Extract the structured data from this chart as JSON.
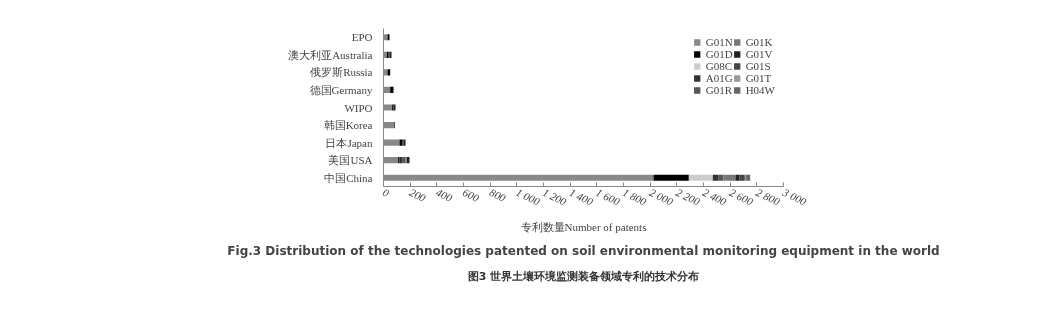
{
  "chart_data": {
    "type": "bar",
    "orientation": "horizontal",
    "stacked": true,
    "title": "图3 世界土壤环境监测装备领域专利的技术分布",
    "subtitle": "Fig.3 Distribution of the technologies patented on soil environmental monitoring equipment in the world",
    "xlabel": "专利数量Number of patents",
    "categories": [
      "EPO",
      "澳大利亚Australia",
      "俄罗斯Russia",
      "德国Germany",
      "WIPO",
      "韩国Korea",
      "日本Japan",
      "美国USA",
      "中国China"
    ],
    "series": [
      {
        "name": "G01N",
        "color": "#888888",
        "values": [
          30,
          25,
          30,
          50,
          65,
          80,
          120,
          110,
          2025
        ]
      },
      {
        "name": "G01D",
        "color": "#000000",
        "values": [
          15,
          10,
          20,
          25,
          10,
          5,
          20,
          10,
          265
        ]
      },
      {
        "name": "G08C",
        "color": "#cccccc",
        "values": [
          0,
          0,
          0,
          0,
          0,
          0,
          0,
          0,
          180
        ]
      },
      {
        "name": "A01G",
        "color": "#333333",
        "values": [
          0,
          10,
          0,
          0,
          0,
          0,
          10,
          20,
          40
        ]
      },
      {
        "name": "G01R",
        "color": "#555555",
        "values": [
          0,
          0,
          0,
          0,
          0,
          0,
          0,
          25,
          40
        ]
      },
      {
        "name": "G01K",
        "color": "#777777",
        "values": [
          0,
          0,
          0,
          0,
          0,
          0,
          0,
          10,
          90
        ]
      },
      {
        "name": "G01V",
        "color": "#222222",
        "values": [
          0,
          15,
          0,
          0,
          15,
          0,
          15,
          20,
          30
        ]
      },
      {
        "name": "G01S",
        "color": "#444444",
        "values": [
          0,
          0,
          0,
          0,
          0,
          0,
          0,
          0,
          40
        ]
      },
      {
        "name": "G01T",
        "color": "#999999",
        "values": [
          0,
          0,
          0,
          0,
          0,
          0,
          0,
          0,
          10
        ]
      },
      {
        "name": "H04W",
        "color": "#666666",
        "values": [
          0,
          0,
          0,
          0,
          0,
          0,
          0,
          0,
          30
        ]
      }
    ],
    "xlim": [
      0,
      3000
    ],
    "xticks": [
      0,
      200,
      400,
      600,
      800,
      {
        "value": 1000,
        "label": "1 000"
      },
      {
        "value": 1200,
        "label": "1 200"
      },
      {
        "value": 1400,
        "label": "1 400"
      },
      {
        "value": 1600,
        "label": "1 600"
      },
      {
        "value": 1800,
        "label": "1 800"
      },
      {
        "value": 2000,
        "label": "2 000"
      },
      {
        "value": 2200,
        "label": "2 200"
      },
      {
        "value": 2400,
        "label": "2 400"
      },
      {
        "value": 2600,
        "label": "2 600"
      },
      {
        "value": 2800,
        "label": "2 800"
      },
      {
        "value": 3000,
        "label": "3 000"
      }
    ],
    "grid": false,
    "legend": "top right"
  }
}
